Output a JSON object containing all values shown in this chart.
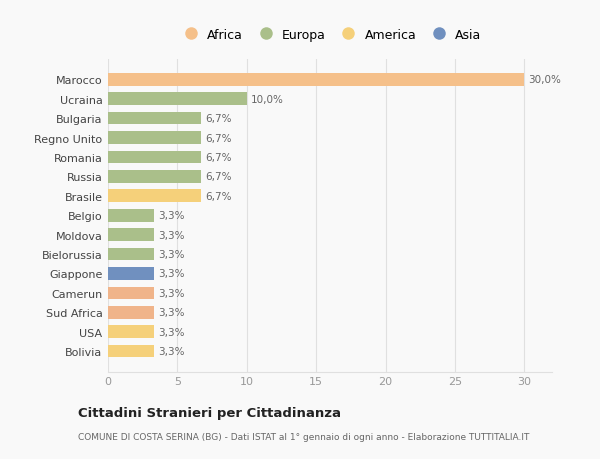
{
  "countries": [
    "Bolivia",
    "USA",
    "Sud Africa",
    "Camerun",
    "Giappone",
    "Bielorussia",
    "Moldova",
    "Belgio",
    "Brasile",
    "Russia",
    "Romania",
    "Regno Unito",
    "Bulgaria",
    "Ucraina",
    "Marocco"
  ],
  "values": [
    3.3,
    3.3,
    3.3,
    3.3,
    3.3,
    3.3,
    3.3,
    3.3,
    6.7,
    6.7,
    6.7,
    6.7,
    6.7,
    10.0,
    30.0
  ],
  "labels": [
    "3,3%",
    "3,3%",
    "3,3%",
    "3,3%",
    "3,3%",
    "3,3%",
    "3,3%",
    "3,3%",
    "6,7%",
    "6,7%",
    "6,7%",
    "6,7%",
    "6,7%",
    "10,0%",
    "30,0%"
  ],
  "colors": [
    "#f5d07a",
    "#f5d07a",
    "#f0b48a",
    "#f0b48a",
    "#7090bf",
    "#aabf8a",
    "#aabf8a",
    "#aabf8a",
    "#f5d07a",
    "#aabf8a",
    "#aabf8a",
    "#aabf8a",
    "#aabf8a",
    "#aabf8a",
    "#f5c08a"
  ],
  "continent_colors": {
    "Africa": "#f5c08a",
    "Europa": "#aabf8a",
    "America": "#f5d07a",
    "Asia": "#7090bf"
  },
  "legend_order": [
    "Africa",
    "Europa",
    "America",
    "Asia"
  ],
  "xlim": [
    0,
    32
  ],
  "xticks": [
    0,
    5,
    10,
    15,
    20,
    25,
    30
  ],
  "title": "Cittadini Stranieri per Cittadinanza",
  "subtitle": "COMUNE DI COSTA SERINA (BG) - Dati ISTAT al 1° gennaio di ogni anno - Elaborazione TUTTITALIA.IT",
  "bg_color": "#f9f9f9",
  "bar_height": 0.65,
  "grid_color": "#e0e0e0"
}
